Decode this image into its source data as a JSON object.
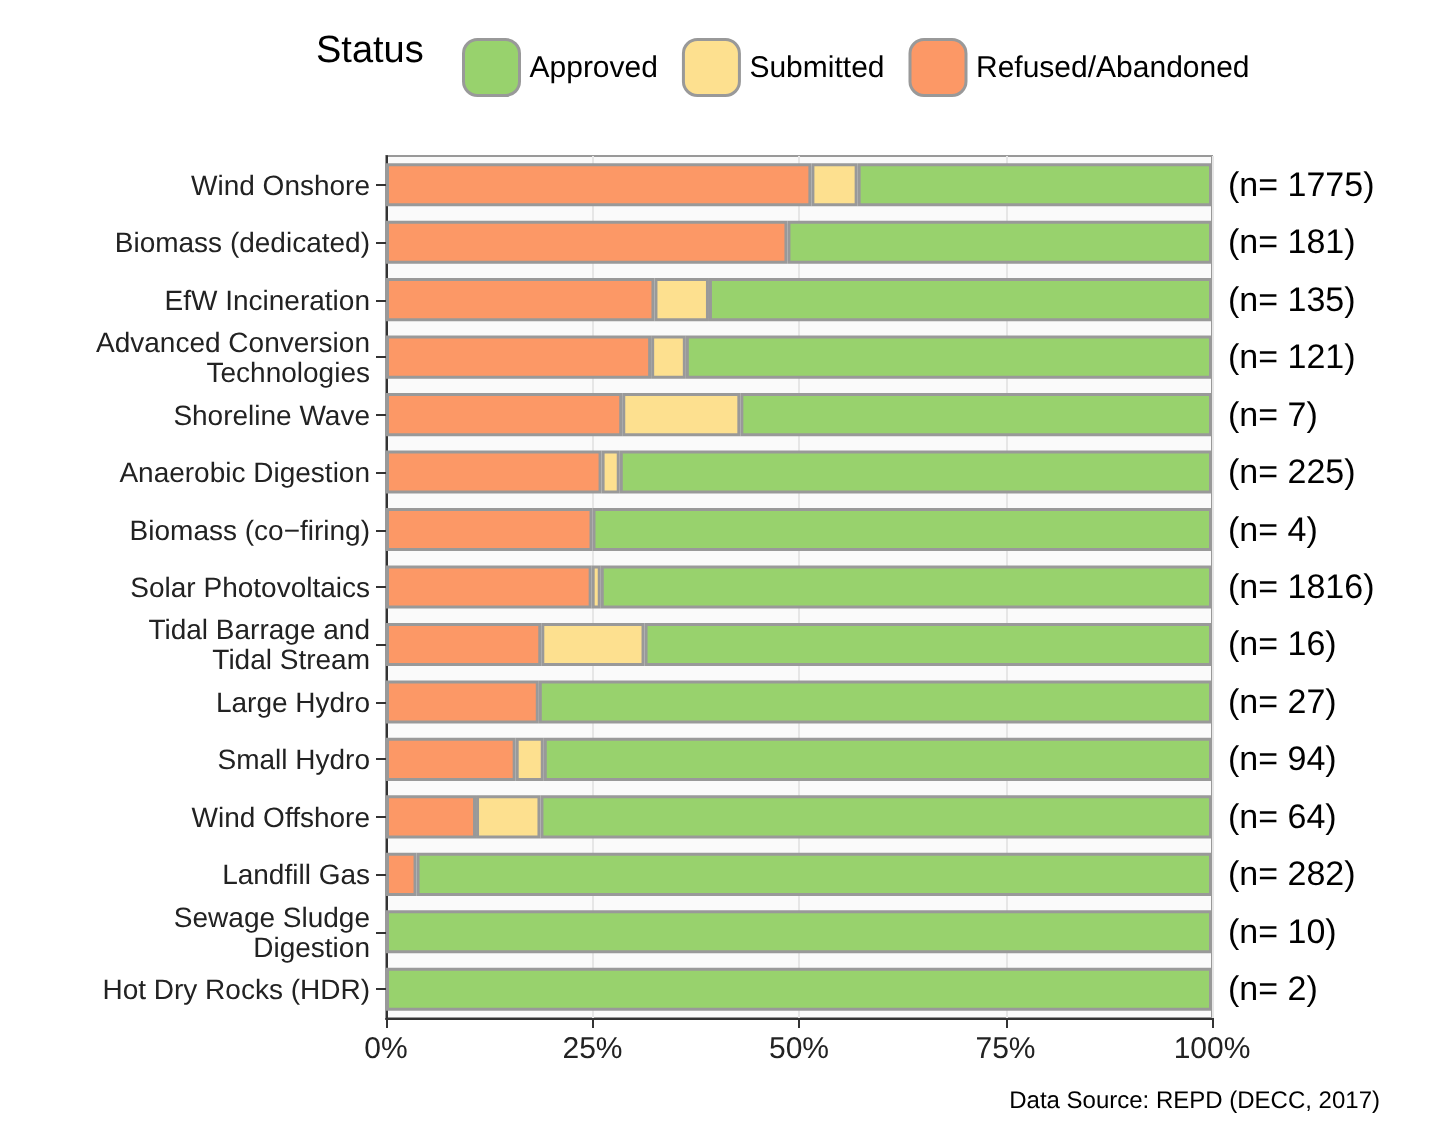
{
  "chart_data": {
    "type": "bar",
    "orientation": "horizontal",
    "stacked": true,
    "legend_title": "Status",
    "legend": "top",
    "categories": [
      "Wind Onshore",
      "Biomass (dedicated)",
      "EfW Incineration",
      "Advanced Conversion\nTechnologies",
      "Shoreline Wave",
      "Anaerobic Digestion",
      "Biomass (co−firing)",
      "Solar Photovoltaics",
      "Tidal Barrage and\nTidal Stream",
      "Large Hydro",
      "Small Hydro",
      "Wind Offshore",
      "Landfill Gas",
      "Sewage Sludge\nDigestion",
      "Hot Dry Rocks (HDR)"
    ],
    "series": [
      {
        "name": "Refused/Abandoned",
        "color": "#fc9866",
        "values": [
          51.5,
          48.6,
          32.5,
          32.1,
          28.6,
          26.1,
          25,
          24.9,
          18.8,
          18.5,
          15.7,
          10.9,
          3.7,
          null,
          null
        ]
      },
      {
        "name": "Submitted",
        "color": "#fde08f",
        "values": [
          5.6,
          null,
          6.6,
          4.2,
          14.3,
          2.2,
          null,
          1.1,
          12.5,
          null,
          3.4,
          7.8,
          null,
          null,
          null
        ]
      },
      {
        "name": "Approved",
        "color": "#98d26d",
        "values": [
          42.9,
          51.4,
          60.9,
          63.7,
          57.1,
          71.7,
          75,
          74.0,
          68.7,
          81.5,
          80.9,
          81.3,
          96.3,
          100,
          100
        ]
      }
    ],
    "xlim": [
      0,
      100
    ],
    "xticks": [
      {
        "value": 0,
        "label": "0%"
      },
      {
        "value": 25,
        "label": "25%"
      },
      {
        "value": 50,
        "label": "50%"
      },
      {
        "value": 75,
        "label": "75%"
      },
      {
        "value": 100,
        "label": "100%"
      }
    ],
    "grid": "x",
    "y2_categories": [
      "(n= 1775)",
      "(n= 181)",
      "(n= 135)",
      "(n= 121)",
      "(n= 7)",
      "(n= 225)",
      "(n= 4)",
      "(n= 1816)",
      "(n= 16)",
      "(n= 27)",
      "(n= 94)",
      "(n= 64)",
      "(n= 282)",
      "(n= 10)",
      "(n= 2)"
    ],
    "annotations": [
      "Data Source: REPD (DECC, 2017)"
    ]
  }
}
